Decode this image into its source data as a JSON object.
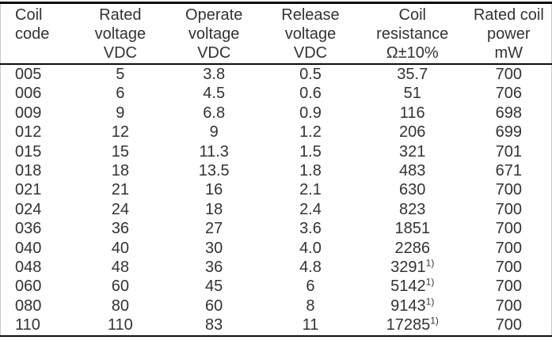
{
  "table": {
    "columns": [
      {
        "id": "coil-code",
        "key": "code",
        "align": "left",
        "header_lines": [
          "Coil",
          "code",
          ""
        ]
      },
      {
        "id": "rated-voltage",
        "key": "rated",
        "align": "center",
        "header_lines": [
          "Rated",
          "voltage",
          "VDC"
        ]
      },
      {
        "id": "operate-voltage",
        "key": "operate",
        "align": "center",
        "header_lines": [
          "Operate",
          "voltage",
          "VDC"
        ]
      },
      {
        "id": "release-voltage",
        "key": "release",
        "align": "center",
        "header_lines": [
          "Release",
          "voltage",
          "VDC"
        ]
      },
      {
        "id": "coil-resistance",
        "key": "resistance",
        "align": "center",
        "header_lines": [
          "Coil",
          "resistance",
          "Ω±10%"
        ]
      },
      {
        "id": "rated-coil-power",
        "key": "power",
        "align": "center",
        "header_lines": [
          "Rated coil",
          "power",
          "mW"
        ]
      }
    ],
    "footnote_marker": "1)",
    "rows": [
      {
        "code": "005",
        "rated": "5",
        "operate": "3.8",
        "release": "0.5",
        "resistance": "35.7",
        "power": "700"
      },
      {
        "code": "006",
        "rated": "6",
        "operate": "4.5",
        "release": "0.6",
        "resistance": "51",
        "power": "706"
      },
      {
        "code": "009",
        "rated": "9",
        "operate": "6.8",
        "release": "0.9",
        "resistance": "116",
        "power": "698"
      },
      {
        "code": "012",
        "rated": "12",
        "operate": "9",
        "release": "1.2",
        "resistance": "206",
        "power": "699"
      },
      {
        "code": "015",
        "rated": "15",
        "operate": "11.3",
        "release": "1.5",
        "resistance": "321",
        "power": "701"
      },
      {
        "code": "018",
        "rated": "18",
        "operate": "13.5",
        "release": "1.8",
        "resistance": "483",
        "power": "671"
      },
      {
        "code": "021",
        "rated": "21",
        "operate": "16",
        "release": "2.1",
        "resistance": "630",
        "power": "700"
      },
      {
        "code": "024",
        "rated": "24",
        "operate": "18",
        "release": "2.4",
        "resistance": "823",
        "power": "700"
      },
      {
        "code": "036",
        "rated": "36",
        "operate": "27",
        "release": "3.6",
        "resistance": "1851",
        "power": "700"
      },
      {
        "code": "040",
        "rated": "40",
        "operate": "30",
        "release": "4.0",
        "resistance": "2286",
        "power": "700"
      },
      {
        "code": "048",
        "rated": "48",
        "operate": "36",
        "release": "4.8",
        "resistance": {
          "text": "3291",
          "sup": "1)"
        },
        "power": "700"
      },
      {
        "code": "060",
        "rated": "60",
        "operate": "45",
        "release": "6",
        "resistance": {
          "text": "5142",
          "sup": "1)"
        },
        "power": "700"
      },
      {
        "code": "080",
        "rated": "80",
        "operate": "60",
        "release": "8",
        "resistance": {
          "text": "9143",
          "sup": "1)"
        },
        "power": "700"
      },
      {
        "code": "110",
        "rated": "110",
        "operate": "83",
        "release": "11",
        "resistance": {
          "text": "17285",
          "sup": "1)"
        },
        "power": "700"
      }
    ]
  },
  "colors": {
    "background": "#ffffff",
    "text": "#333333",
    "rule": "#0d0d0d",
    "edge": "#c9c9c9"
  }
}
